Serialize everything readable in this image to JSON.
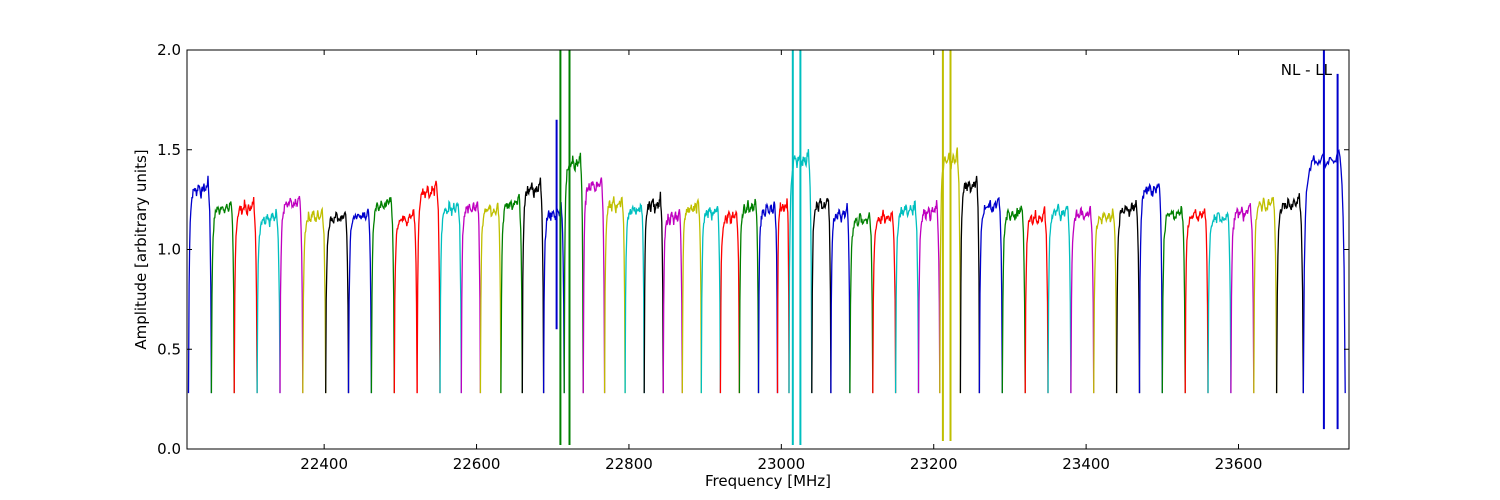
{
  "chart_data": {
    "type": "line",
    "title": "",
    "xlabel": "Frequency [MHz]",
    "ylabel": "Amplitude [arbitrary units]",
    "xlim": [
      22220,
      23745
    ],
    "ylim": [
      0.0,
      2.0
    ],
    "x_ticks": [
      22400,
      22600,
      22800,
      23000,
      23200,
      23400,
      23600
    ],
    "x_tick_labels": [
      "22400",
      "22600",
      "22800",
      "23000",
      "23200",
      "23400",
      "23600"
    ],
    "y_ticks": [
      0.0,
      0.5,
      1.0,
      1.5,
      2.0
    ],
    "y_tick_labels": [
      "0.0",
      "0.5",
      "1.0",
      "1.5",
      "2.0"
    ],
    "grid": false,
    "annotation": "NL - LL",
    "palette": [
      "#0000cc",
      "#008000",
      "#ff0000",
      "#00bfbf",
      "#bf00bf",
      "#bfbf00",
      "#000000"
    ],
    "band_template": {
      "offset": [
        0,
        0.03,
        0.08,
        0.15,
        0.25,
        0.35,
        0.45,
        0.55,
        0.65,
        0.75,
        0.85,
        0.92,
        0.97,
        1.0
      ],
      "level": [
        0.28,
        0.85,
        1.08,
        1.16,
        1.2,
        1.18,
        1.22,
        1.17,
        1.21,
        1.19,
        1.24,
        1.12,
        0.85,
        0.28
      ]
    },
    "series": [
      {
        "color": "#0000cc",
        "start": 22222,
        "end": 22252,
        "peak": 1.35
      },
      {
        "color": "#008000",
        "start": 22252,
        "end": 22282,
        "peak": 1.25
      },
      {
        "color": "#ff0000",
        "start": 22282,
        "end": 22312,
        "peak": 1.25
      },
      {
        "color": "#00bfbf",
        "start": 22312,
        "end": 22342,
        "peak": 1.2
      },
      {
        "color": "#bf00bf",
        "start": 22342,
        "end": 22372,
        "peak": 1.27
      },
      {
        "color": "#bfbf00",
        "start": 22372,
        "end": 22402,
        "peak": 1.21
      },
      {
        "color": "#000000",
        "start": 22402,
        "end": 22432,
        "peak": 1.2
      },
      {
        "color": "#0000cc",
        "start": 22432,
        "end": 22462,
        "peak": 1.21
      },
      {
        "color": "#008000",
        "start": 22462,
        "end": 22492,
        "peak": 1.27
      },
      {
        "color": "#ff0000",
        "start": 22492,
        "end": 22522,
        "peak": 1.2
      },
      {
        "color": "#ff0000",
        "start": 22522,
        "end": 22552,
        "peak": 1.34
      },
      {
        "color": "#00bfbf",
        "start": 22552,
        "end": 22580,
        "peak": 1.25
      },
      {
        "color": "#bf00bf",
        "start": 22580,
        "end": 22605,
        "peak": 1.25
      },
      {
        "color": "#bfbf00",
        "start": 22605,
        "end": 22632,
        "peak": 1.24
      },
      {
        "color": "#008000",
        "start": 22632,
        "end": 22660,
        "peak": 1.27
      },
      {
        "color": "#000000",
        "start": 22660,
        "end": 22688,
        "peak": 1.35
      },
      {
        "color": "#0000cc",
        "start": 22688,
        "end": 22715,
        "peak": 1.22
      },
      {
        "color": "#008000",
        "start": 22715,
        "end": 22740,
        "peak": 1.48
      },
      {
        "color": "#bf00bf",
        "start": 22740,
        "end": 22768,
        "peak": 1.37
      },
      {
        "color": "#bfbf00",
        "start": 22768,
        "end": 22795,
        "peak": 1.27
      },
      {
        "color": "#00bfbf",
        "start": 22795,
        "end": 22820,
        "peak": 1.24
      },
      {
        "color": "#000000",
        "start": 22820,
        "end": 22845,
        "peak": 1.27
      },
      {
        "color": "#bf00bf",
        "start": 22845,
        "end": 22870,
        "peak": 1.2
      },
      {
        "color": "#bfbf00",
        "start": 22870,
        "end": 22895,
        "peak": 1.25
      },
      {
        "color": "#00bfbf",
        "start": 22895,
        "end": 22920,
        "peak": 1.23
      },
      {
        "color": "#ff0000",
        "start": 22920,
        "end": 22945,
        "peak": 1.2
      },
      {
        "color": "#008000",
        "start": 22945,
        "end": 22970,
        "peak": 1.25
      },
      {
        "color": "#0000cc",
        "start": 22970,
        "end": 22995,
        "peak": 1.24
      },
      {
        "color": "#ff0000",
        "start": 22995,
        "end": 23010,
        "peak": 1.26
      },
      {
        "color": "#00bfbf",
        "start": 23010,
        "end": 23040,
        "peak": 1.5
      },
      {
        "color": "#000000",
        "start": 23040,
        "end": 23065,
        "peak": 1.27
      },
      {
        "color": "#0000cc",
        "start": 23065,
        "end": 23090,
        "peak": 1.22
      },
      {
        "color": "#008000",
        "start": 23090,
        "end": 23120,
        "peak": 1.19
      },
      {
        "color": "#ff0000",
        "start": 23120,
        "end": 23150,
        "peak": 1.2
      },
      {
        "color": "#00bfbf",
        "start": 23150,
        "end": 23180,
        "peak": 1.24
      },
      {
        "color": "#bf00bf",
        "start": 23180,
        "end": 23208,
        "peak": 1.23
      },
      {
        "color": "#bfbf00",
        "start": 23208,
        "end": 23235,
        "peak": 1.5
      },
      {
        "color": "#000000",
        "start": 23235,
        "end": 23260,
        "peak": 1.37
      },
      {
        "color": "#0000cc",
        "start": 23260,
        "end": 23290,
        "peak": 1.26
      },
      {
        "color": "#008000",
        "start": 23290,
        "end": 23320,
        "peak": 1.22
      },
      {
        "color": "#ff0000",
        "start": 23320,
        "end": 23350,
        "peak": 1.2
      },
      {
        "color": "#00bfbf",
        "start": 23350,
        "end": 23380,
        "peak": 1.23
      },
      {
        "color": "#bf00bf",
        "start": 23380,
        "end": 23410,
        "peak": 1.22
      },
      {
        "color": "#bfbf00",
        "start": 23410,
        "end": 23440,
        "peak": 1.2
      },
      {
        "color": "#000000",
        "start": 23440,
        "end": 23470,
        "peak": 1.25
      },
      {
        "color": "#0000cc",
        "start": 23470,
        "end": 23500,
        "peak": 1.35
      },
      {
        "color": "#008000",
        "start": 23500,
        "end": 23530,
        "peak": 1.22
      },
      {
        "color": "#ff0000",
        "start": 23530,
        "end": 23560,
        "peak": 1.21
      },
      {
        "color": "#00bfbf",
        "start": 23560,
        "end": 23590,
        "peak": 1.2
      },
      {
        "color": "#bf00bf",
        "start": 23590,
        "end": 23620,
        "peak": 1.23
      },
      {
        "color": "#bfbf00",
        "start": 23620,
        "end": 23650,
        "peak": 1.27
      },
      {
        "color": "#000000",
        "start": 23650,
        "end": 23685,
        "peak": 1.27
      },
      {
        "color": "#0000cc",
        "start": 23685,
        "end": 23740,
        "peak": 1.5
      }
    ],
    "spikes": [
      {
        "color": "#008000",
        "x": 22710,
        "ymin": 0.02,
        "ymax": 2.0
      },
      {
        "color": "#008000",
        "x": 22722,
        "ymin": 0.02,
        "ymax": 2.0
      },
      {
        "color": "#0000cc",
        "x": 22705,
        "ymin": 0.6,
        "ymax": 1.65
      },
      {
        "color": "#00bfbf",
        "x": 23015,
        "ymin": 0.02,
        "ymax": 2.0
      },
      {
        "color": "#00bfbf",
        "x": 23025,
        "ymin": 0.02,
        "ymax": 2.0
      },
      {
        "color": "#bfbf00",
        "x": 23212,
        "ymin": 0.04,
        "ymax": 2.0
      },
      {
        "color": "#bfbf00",
        "x": 23222,
        "ymin": 0.04,
        "ymax": 2.0
      },
      {
        "color": "#0000cc",
        "x": 23712,
        "ymin": 0.1,
        "ymax": 2.0
      },
      {
        "color": "#0000cc",
        "x": 23730,
        "ymin": 0.1,
        "ymax": 1.88
      }
    ]
  }
}
